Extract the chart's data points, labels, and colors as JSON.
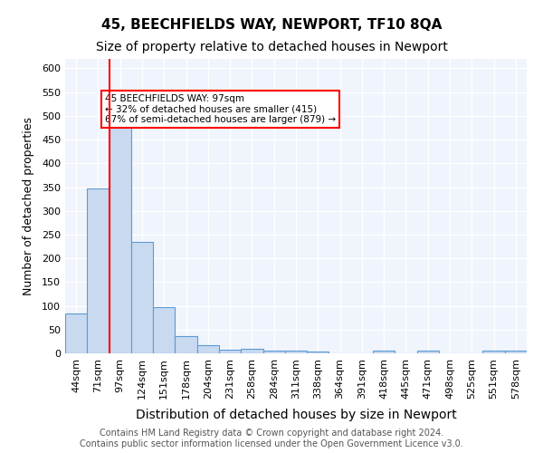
{
  "title1": "45, BEECHFIELDS WAY, NEWPORT, TF10 8QA",
  "title2": "Size of property relative to detached houses in Newport",
  "xlabel": "Distribution of detached houses by size in Newport",
  "ylabel": "Number of detached properties",
  "categories": [
    "44sqm",
    "71sqm",
    "97sqm",
    "124sqm",
    "151sqm",
    "178sqm",
    "204sqm",
    "231sqm",
    "258sqm",
    "284sqm",
    "311sqm",
    "338sqm",
    "364sqm",
    "391sqm",
    "418sqm",
    "445sqm",
    "471sqm",
    "498sqm",
    "525sqm",
    "551sqm",
    "578sqm"
  ],
  "values": [
    83,
    348,
    483,
    235,
    97,
    37,
    18,
    8,
    9,
    6,
    5,
    4,
    0,
    0,
    5,
    0,
    6,
    0,
    0,
    5,
    5
  ],
  "bar_color": "#c8d9f0",
  "bar_edge_color": "#5b9bd5",
  "red_line_index": 2,
  "annotation_text": "45 BEECHFIELDS WAY: 97sqm\n← 32% of detached houses are smaller (415)\n67% of semi-detached houses are larger (879) →",
  "annotation_box_color": "white",
  "annotation_box_edge_color": "red",
  "ylim": [
    0,
    620
  ],
  "yticks": [
    0,
    50,
    100,
    150,
    200,
    250,
    300,
    350,
    400,
    450,
    500,
    550,
    600
  ],
  "background_color": "#f0f4fc",
  "grid_color": "white",
  "footer_text": "Contains HM Land Registry data © Crown copyright and database right 2024.\nContains public sector information licensed under the Open Government Licence v3.0.",
  "title1_fontsize": 11,
  "title2_fontsize": 10,
  "xlabel_fontsize": 10,
  "ylabel_fontsize": 9,
  "tick_fontsize": 8,
  "footer_fontsize": 7
}
